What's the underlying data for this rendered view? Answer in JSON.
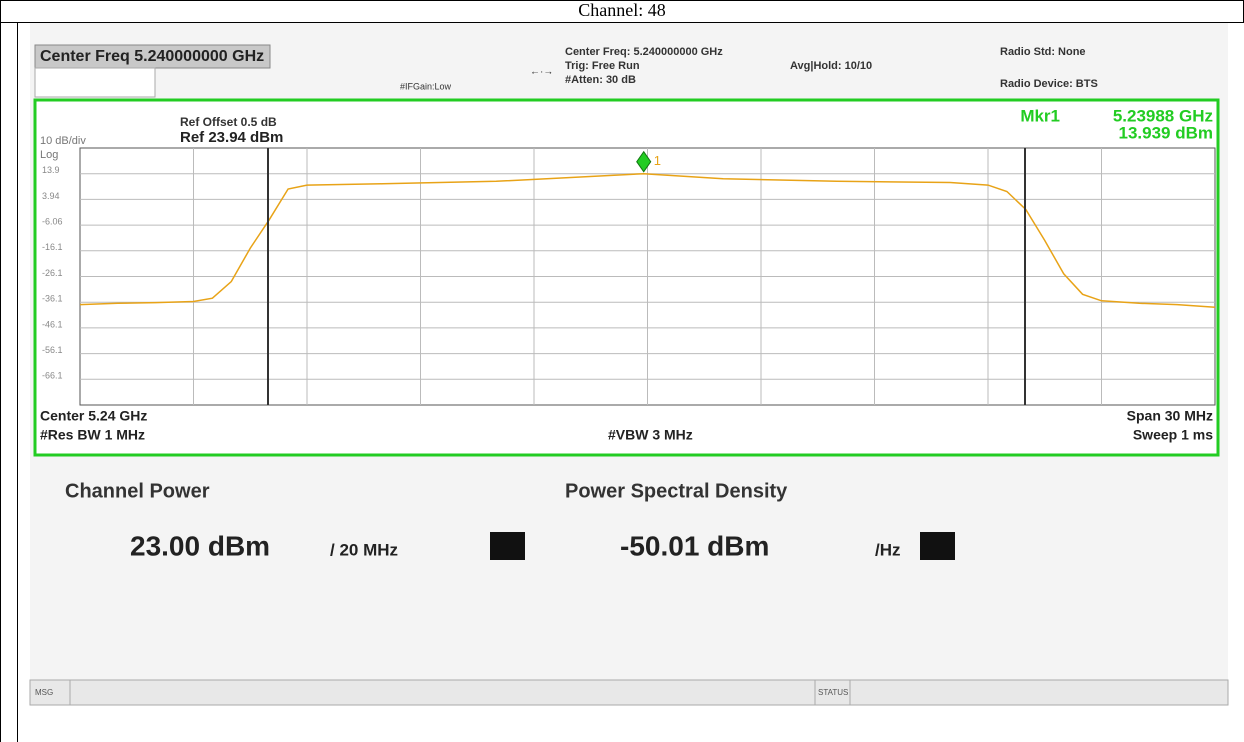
{
  "header": {
    "title": "Channel: 48"
  },
  "top_bar": {
    "center_freq_box": "Center Freq 5.240000000 GHz",
    "if_gain": "#IFGain:Low",
    "center_freq": "Center Freq: 5.240000000 GHz",
    "trig": "Trig: Free Run",
    "atten": "#Atten: 30 dB",
    "avg_hold": "Avg|Hold: 10/10",
    "radio_std": "Radio Std: None",
    "radio_device": "Radio Device: BTS"
  },
  "chart_data": {
    "type": "line",
    "ref_offset": "Ref Offset 0.5 dB",
    "ref_level": "Ref 23.94 dBm",
    "scale": "10 dB/div",
    "scale_type": "Log",
    "marker_label": "Mkr1",
    "marker_freq": "5.23988 GHz",
    "marker_level": "13.939 dBm",
    "marker_number": "1",
    "x": [
      5.225,
      5.226,
      5.227,
      5.228,
      5.2285,
      5.229,
      5.2295,
      5.23,
      5.2305,
      5.231,
      5.233,
      5.236,
      5.2399,
      5.242,
      5.245,
      5.248,
      5.249,
      5.2495,
      5.25,
      5.2505,
      5.251,
      5.2515,
      5.252,
      5.253,
      5.254,
      5.255
    ],
    "values": [
      -37,
      -36.5,
      -36.2,
      -35.8,
      -34.5,
      -28,
      -15,
      -4,
      8,
      9.5,
      10,
      11,
      13.939,
      12,
      11,
      10.5,
      9.5,
      7,
      0,
      -12,
      -25,
      -33,
      -35.5,
      -36.5,
      -37,
      -38
    ],
    "color": "#e8a317",
    "xlim": [
      5.225,
      5.255
    ],
    "ylim": [
      -76.06,
      23.94
    ],
    "yticks": [
      {
        "value": 13.94,
        "label": "13.9"
      },
      3.94,
      -6.06,
      {
        "value": -16.06,
        "label": "-16.1"
      },
      {
        "value": -26.06,
        "label": "-26.1"
      },
      {
        "value": -36.06,
        "label": "-36.1"
      },
      {
        "value": -46.06,
        "label": "-46.1"
      },
      {
        "value": -56.06,
        "label": "-56.1"
      },
      {
        "value": -66.06,
        "label": "-66.1"
      }
    ],
    "grid": true,
    "center": "Center 5.24 GHz",
    "res_bw": "#Res BW 1 MHz",
    "vbw": "#VBW 3 MHz",
    "span": "Span 30 MHz",
    "sweep": "Sweep 1 ms"
  },
  "results": {
    "channel_power_label": "Channel Power",
    "channel_power": "23.00 dBm",
    "channel_power_unit": "/ 20 MHz",
    "psd_label": "Power Spectral Density",
    "psd": "-50.01 dBm",
    "psd_unit": "/Hz"
  },
  "status_bar": {
    "msg": "MSG",
    "status": "STATUS"
  }
}
